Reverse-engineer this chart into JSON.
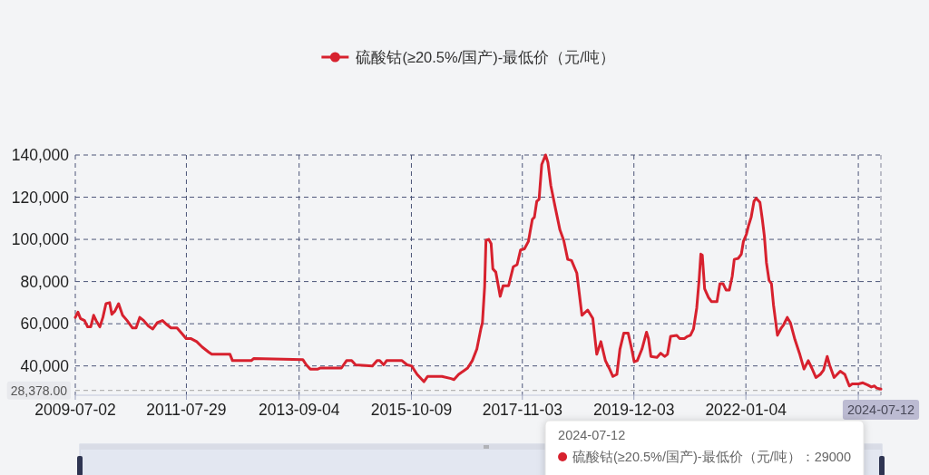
{
  "chart_data": {
    "type": "line",
    "x": [
      "2009-07-02",
      "2009-07-20",
      "2009-08-06",
      "2009-09-03",
      "2009-09-24",
      "2009-10-15",
      "2009-11-04",
      "2009-11-21",
      "2009-12-16",
      "2010-01-06",
      "2010-01-27",
      "2010-02-21",
      "2010-03-08",
      "2010-03-29",
      "2010-04-23",
      "2010-05-20",
      "2010-06-20",
      "2010-07-27",
      "2010-08-20",
      "2010-09-14",
      "2010-10-11",
      "2010-11-11",
      "2010-12-12",
      "2011-01-12",
      "2011-02-16",
      "2011-03-19",
      "2011-04-15",
      "2011-05-26",
      "2011-06-26",
      "2011-07-27",
      "2011-08-27",
      "2011-10-07",
      "2011-11-13",
      "2011-12-28",
      "2012-01-18",
      "2012-05-21",
      "2012-06-07",
      "2012-10-13",
      "2012-10-29",
      "2013-09-29",
      "2013-10-23",
      "2013-11-19",
      "2014-01-10",
      "2014-01-27",
      "2014-06-19",
      "2014-07-24",
      "2014-08-28",
      "2014-09-24",
      "2015-01-16",
      "2015-02-17",
      "2015-03-07",
      "2015-04-03",
      "2015-04-23",
      "2015-08-06",
      "2015-09-10",
      "2015-10-10",
      "2015-11-17",
      "2016-01-02",
      "2016-01-27",
      "2016-05-04",
      "2016-07-05",
      "2016-07-25",
      "2016-08-26",
      "2016-09-26",
      "2016-10-26",
      "2016-11-27",
      "2016-12-28",
      "2017-01-24",
      "2017-02-04",
      "2017-02-19",
      "2017-02-28",
      "2017-03-19",
      "2017-04-04",
      "2017-04-16",
      "2017-05-06",
      "2017-06-05",
      "2017-06-25",
      "2017-08-01",
      "2017-09-02",
      "2017-09-28",
      "2017-10-22",
      "2017-11-17",
      "2017-12-14",
      "2018-01-10",
      "2018-01-24",
      "2018-02-09",
      "2018-02-25",
      "2018-03-15",
      "2018-04-10",
      "2018-04-26",
      "2018-05-16",
      "2018-06-17",
      "2018-07-17",
      "2018-08-12",
      "2018-09-08",
      "2018-10-04",
      "2018-11-09",
      "2018-12-14",
      "2019-01-22",
      "2019-02-26",
      "2019-03-25",
      "2019-04-22",
      "2019-05-23",
      "2019-06-17",
      "2019-07-13",
      "2019-08-09",
      "2019-08-30",
      "2019-09-25",
      "2019-10-25",
      "2019-11-15",
      "2019-12-05",
      "2019-12-26",
      "2020-01-27",
      "2020-02-27",
      "2020-03-11",
      "2020-03-28",
      "2020-05-08",
      "2020-06-02",
      "2020-06-29",
      "2020-07-19",
      "2020-08-09",
      "2020-09-20",
      "2020-10-10",
      "2020-11-11",
      "2020-12-02",
      "2020-12-22",
      "2021-01-12",
      "2021-02-03",
      "2021-02-19",
      "2021-03-03",
      "2021-03-13",
      "2021-03-29",
      "2021-04-24",
      "2021-05-14",
      "2021-06-21",
      "2021-07-11",
      "2021-08-01",
      "2021-08-22",
      "2021-09-13",
      "2021-10-03",
      "2021-10-17",
      "2021-11-13",
      "2021-12-04",
      "2021-12-18",
      "2022-01-08",
      "2022-01-22",
      "2022-02-09",
      "2022-02-28",
      "2022-03-15",
      "2022-04-10",
      "2022-04-26",
      "2022-05-10",
      "2022-05-24",
      "2022-06-11",
      "2022-06-27",
      "2022-07-11",
      "2022-08-07",
      "2022-09-02",
      "2022-09-18",
      "2022-10-13",
      "2022-11-03",
      "2022-12-04",
      "2023-01-04",
      "2023-02-04",
      "2023-03-05",
      "2023-03-29",
      "2023-04-26",
      "2023-05-26",
      "2023-06-17",
      "2023-07-12",
      "2023-07-28",
      "2023-08-28",
      "2023-10-09",
      "2023-11-09",
      "2023-12-10",
      "2023-12-30",
      "2024-02-11",
      "2024-03-11",
      "2024-04-12",
      "2024-05-08",
      "2024-05-29",
      "2024-06-13",
      "2024-07-12"
    ],
    "series": [
      {
        "name": "硫酸钴(≥20.5%/国产)-最低价（元/吨）",
        "color": "#d7212e",
        "values": [
          63000,
          65500,
          62500,
          61500,
          58500,
          58500,
          64000,
          61500,
          58500,
          63000,
          69500,
          70000,
          64500,
          66000,
          69500,
          64000,
          61500,
          58000,
          58000,
          63000,
          61500,
          59000,
          57500,
          60500,
          61500,
          59500,
          58000,
          58000,
          55500,
          53000,
          53000,
          51500,
          49000,
          46500,
          45500,
          45500,
          42500,
          42500,
          43500,
          43000,
          40500,
          38500,
          38500,
          39000,
          39000,
          42500,
          42500,
          40500,
          40000,
          42500,
          42500,
          40500,
          42500,
          42500,
          40500,
          40000,
          36000,
          32500,
          35000,
          35000,
          34000,
          33500,
          36000,
          37500,
          39000,
          42500,
          48000,
          57500,
          60500,
          77500,
          99500,
          100000,
          98000,
          86000,
          84500,
          73000,
          78000,
          78000,
          87000,
          88000,
          95000,
          95500,
          99000,
          109500,
          110500,
          118000,
          119000,
          135500,
          140000,
          136500,
          125500,
          114500,
          104500,
          99500,
          90500,
          90000,
          84000,
          64000,
          66500,
          62500,
          45500,
          51500,
          42500,
          39000,
          35000,
          36000,
          48000,
          55500,
          55500,
          49000,
          42000,
          42500,
          48000,
          56000,
          53000,
          44500,
          44000,
          46000,
          44500,
          45500,
          54000,
          54500,
          53000,
          53000,
          54000,
          54500,
          57500,
          67500,
          80500,
          93000,
          92500,
          76500,
          72500,
          70500,
          70500,
          79000,
          79000,
          76000,
          76000,
          82500,
          90500,
          91000,
          93000,
          99000,
          102500,
          106500,
          110500,
          118000,
          119500,
          117500,
          109500,
          101500,
          89000,
          80500,
          79000,
          69000,
          54500,
          58000,
          59500,
          63000,
          60500,
          52500,
          46000,
          38500,
          42500,
          39000,
          34500,
          36000,
          38000,
          44500,
          40500,
          34500,
          37500,
          36000,
          30500,
          31500,
          31500,
          32000,
          31000,
          30000,
          30500,
          29500,
          29000
        ]
      }
    ],
    "xlim": [
      "2009-07-02",
      "2024-07-12"
    ],
    "xticks": [
      "2009-07-02",
      "2011-07-29",
      "2013-09-04",
      "2015-10-09",
      "2017-11-03",
      "2019-12-03",
      "2022-01-04",
      {
        "value": "2024-02-09",
        "label": null
      }
    ],
    "ylim": [
      26100,
      140000
    ],
    "yticks": [
      {
        "value": 40000,
        "label": "40,000"
      },
      {
        "value": 60000,
        "label": "60,000"
      },
      {
        "value": 80000,
        "label": "80,000"
      },
      {
        "value": 100000,
        "label": "100,000"
      },
      {
        "value": 120000,
        "label": "120,000"
      },
      {
        "value": 140000,
        "label": "140,000"
      }
    ],
    "grid": true,
    "legend": "top",
    "line_style": "solid",
    "ref_lines": [
      {
        "axis": "y",
        "value": 28378,
        "label": "28,378.00",
        "color": "#b4b4b4",
        "line_style": "dashed"
      },
      {
        "axis": "x",
        "value": "2024-07-12",
        "label": "2024-07-12",
        "color": "#a4a6b4",
        "line_style": "dashed"
      }
    ],
    "annotations": [
      "2024-07-12",
      "硫酸钴(≥20.5%/国产)-最低价（元/吨）：29000"
    ]
  }
}
